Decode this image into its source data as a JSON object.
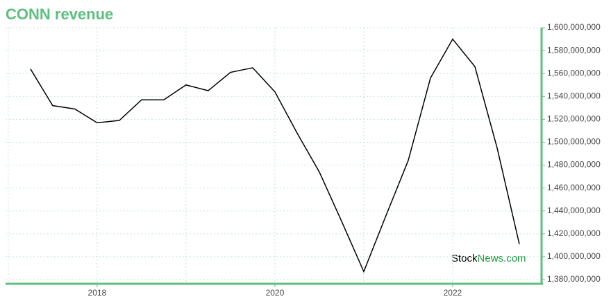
{
  "chart_data": {
    "type": "line",
    "title": "CONN revenue",
    "x": [
      2017.25,
      2017.5,
      2017.75,
      2018,
      2018.25,
      2018.5,
      2018.75,
      2019,
      2019.25,
      2019.5,
      2019.75,
      2020,
      2020.25,
      2020.5,
      2020.75,
      2021,
      2021.25,
      2021.5,
      2021.75,
      2022,
      2022.25,
      2022.5,
      2022.75
    ],
    "series": [
      {
        "name": "revenue",
        "color": "#000000",
        "values": [
          1564000000,
          1532000000,
          1529000000,
          1517000000,
          1519000000,
          1537000000,
          1537000000,
          1550000000,
          1545000000,
          1561000000,
          1565000000,
          1544000000,
          1508000000,
          1474000000,
          1431000000,
          1387000000,
          1436000000,
          1484000000,
          1556000000,
          1590000000,
          1566000000,
          1495000000,
          1411000000
        ]
      }
    ],
    "xlim": [
      2016.97,
      2023
    ],
    "xticks": [
      2018,
      2020,
      2022
    ],
    "xminor": [
      2017,
      2019,
      2021
    ],
    "ylim": [
      1380000000,
      1600000000
    ],
    "yticks": [
      {
        "value": 1380000000,
        "label": "1,380,000,000"
      },
      {
        "value": 1400000000,
        "label": "1,400,000,000"
      },
      {
        "value": 1420000000,
        "label": "1,420,000,000"
      },
      {
        "value": 1440000000,
        "label": "1,440,000,000"
      },
      {
        "value": 1460000000,
        "label": "1,460,000,000"
      },
      {
        "value": 1480000000,
        "label": "1,480,000,000"
      },
      {
        "value": 1500000000,
        "label": "1,500,000,000"
      },
      {
        "value": 1520000000,
        "label": "1,520,000,000"
      },
      {
        "value": 1540000000,
        "label": "1,540,000,000"
      },
      {
        "value": 1560000000,
        "label": "1,560,000,000"
      },
      {
        "value": 1580000000,
        "label": "1,580,000,000"
      },
      {
        "value": 1600000000,
        "label": "1,600,000,000"
      }
    ],
    "grid": true,
    "axis_color": "#5cbf7d"
  },
  "watermark": {
    "part1": "Stock",
    "part2": "News.com"
  }
}
